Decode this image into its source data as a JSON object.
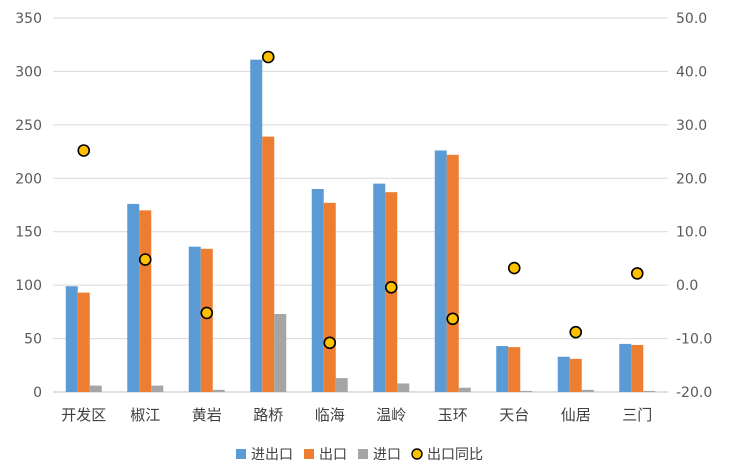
{
  "chart_data": {
    "type": "bar",
    "categories": [
      "开发区",
      "椒江",
      "黄岩",
      "路桥",
      "临海",
      "温岭",
      "玉环",
      "天台",
      "仙居",
      "三门"
    ],
    "series": [
      {
        "name": "进出口",
        "kind": "bar",
        "axis": "left",
        "color": "#5b9bd5",
        "values": [
          99,
          176,
          136,
          311,
          190,
          195,
          226,
          43,
          33,
          45
        ]
      },
      {
        "name": "出口",
        "kind": "bar",
        "axis": "left",
        "color": "#ed7d31",
        "values": [
          93,
          170,
          134,
          239,
          177,
          187,
          222,
          42,
          31,
          44
        ]
      },
      {
        "name": "进口",
        "kind": "bar",
        "axis": "left",
        "color": "#a5a5a5",
        "values": [
          6,
          6,
          2,
          73,
          13,
          8,
          4,
          1,
          2,
          1
        ]
      },
      {
        "name": "出口同比",
        "kind": "scatter",
        "axis": "right",
        "color": "#ffc000",
        "values": [
          25.2,
          4.8,
          -5.2,
          42.7,
          -10.8,
          -0.4,
          -6.3,
          3.2,
          -8.8,
          2.2
        ]
      }
    ],
    "y_left": {
      "min": 0,
      "max": 350,
      "step": 50,
      "ticks": [
        "0",
        "50",
        "100",
        "150",
        "200",
        "250",
        "300",
        "350"
      ]
    },
    "y_right": {
      "min": -20,
      "max": 50,
      "step": 10,
      "ticks": [
        "-20.0",
        "-10.0",
        "0.0",
        "10.0",
        "20.0",
        "30.0",
        "40.0",
        "50.0"
      ]
    },
    "grid": true,
    "legend_position": "bottom",
    "title": "",
    "xlabel": "",
    "ylabel": ""
  }
}
